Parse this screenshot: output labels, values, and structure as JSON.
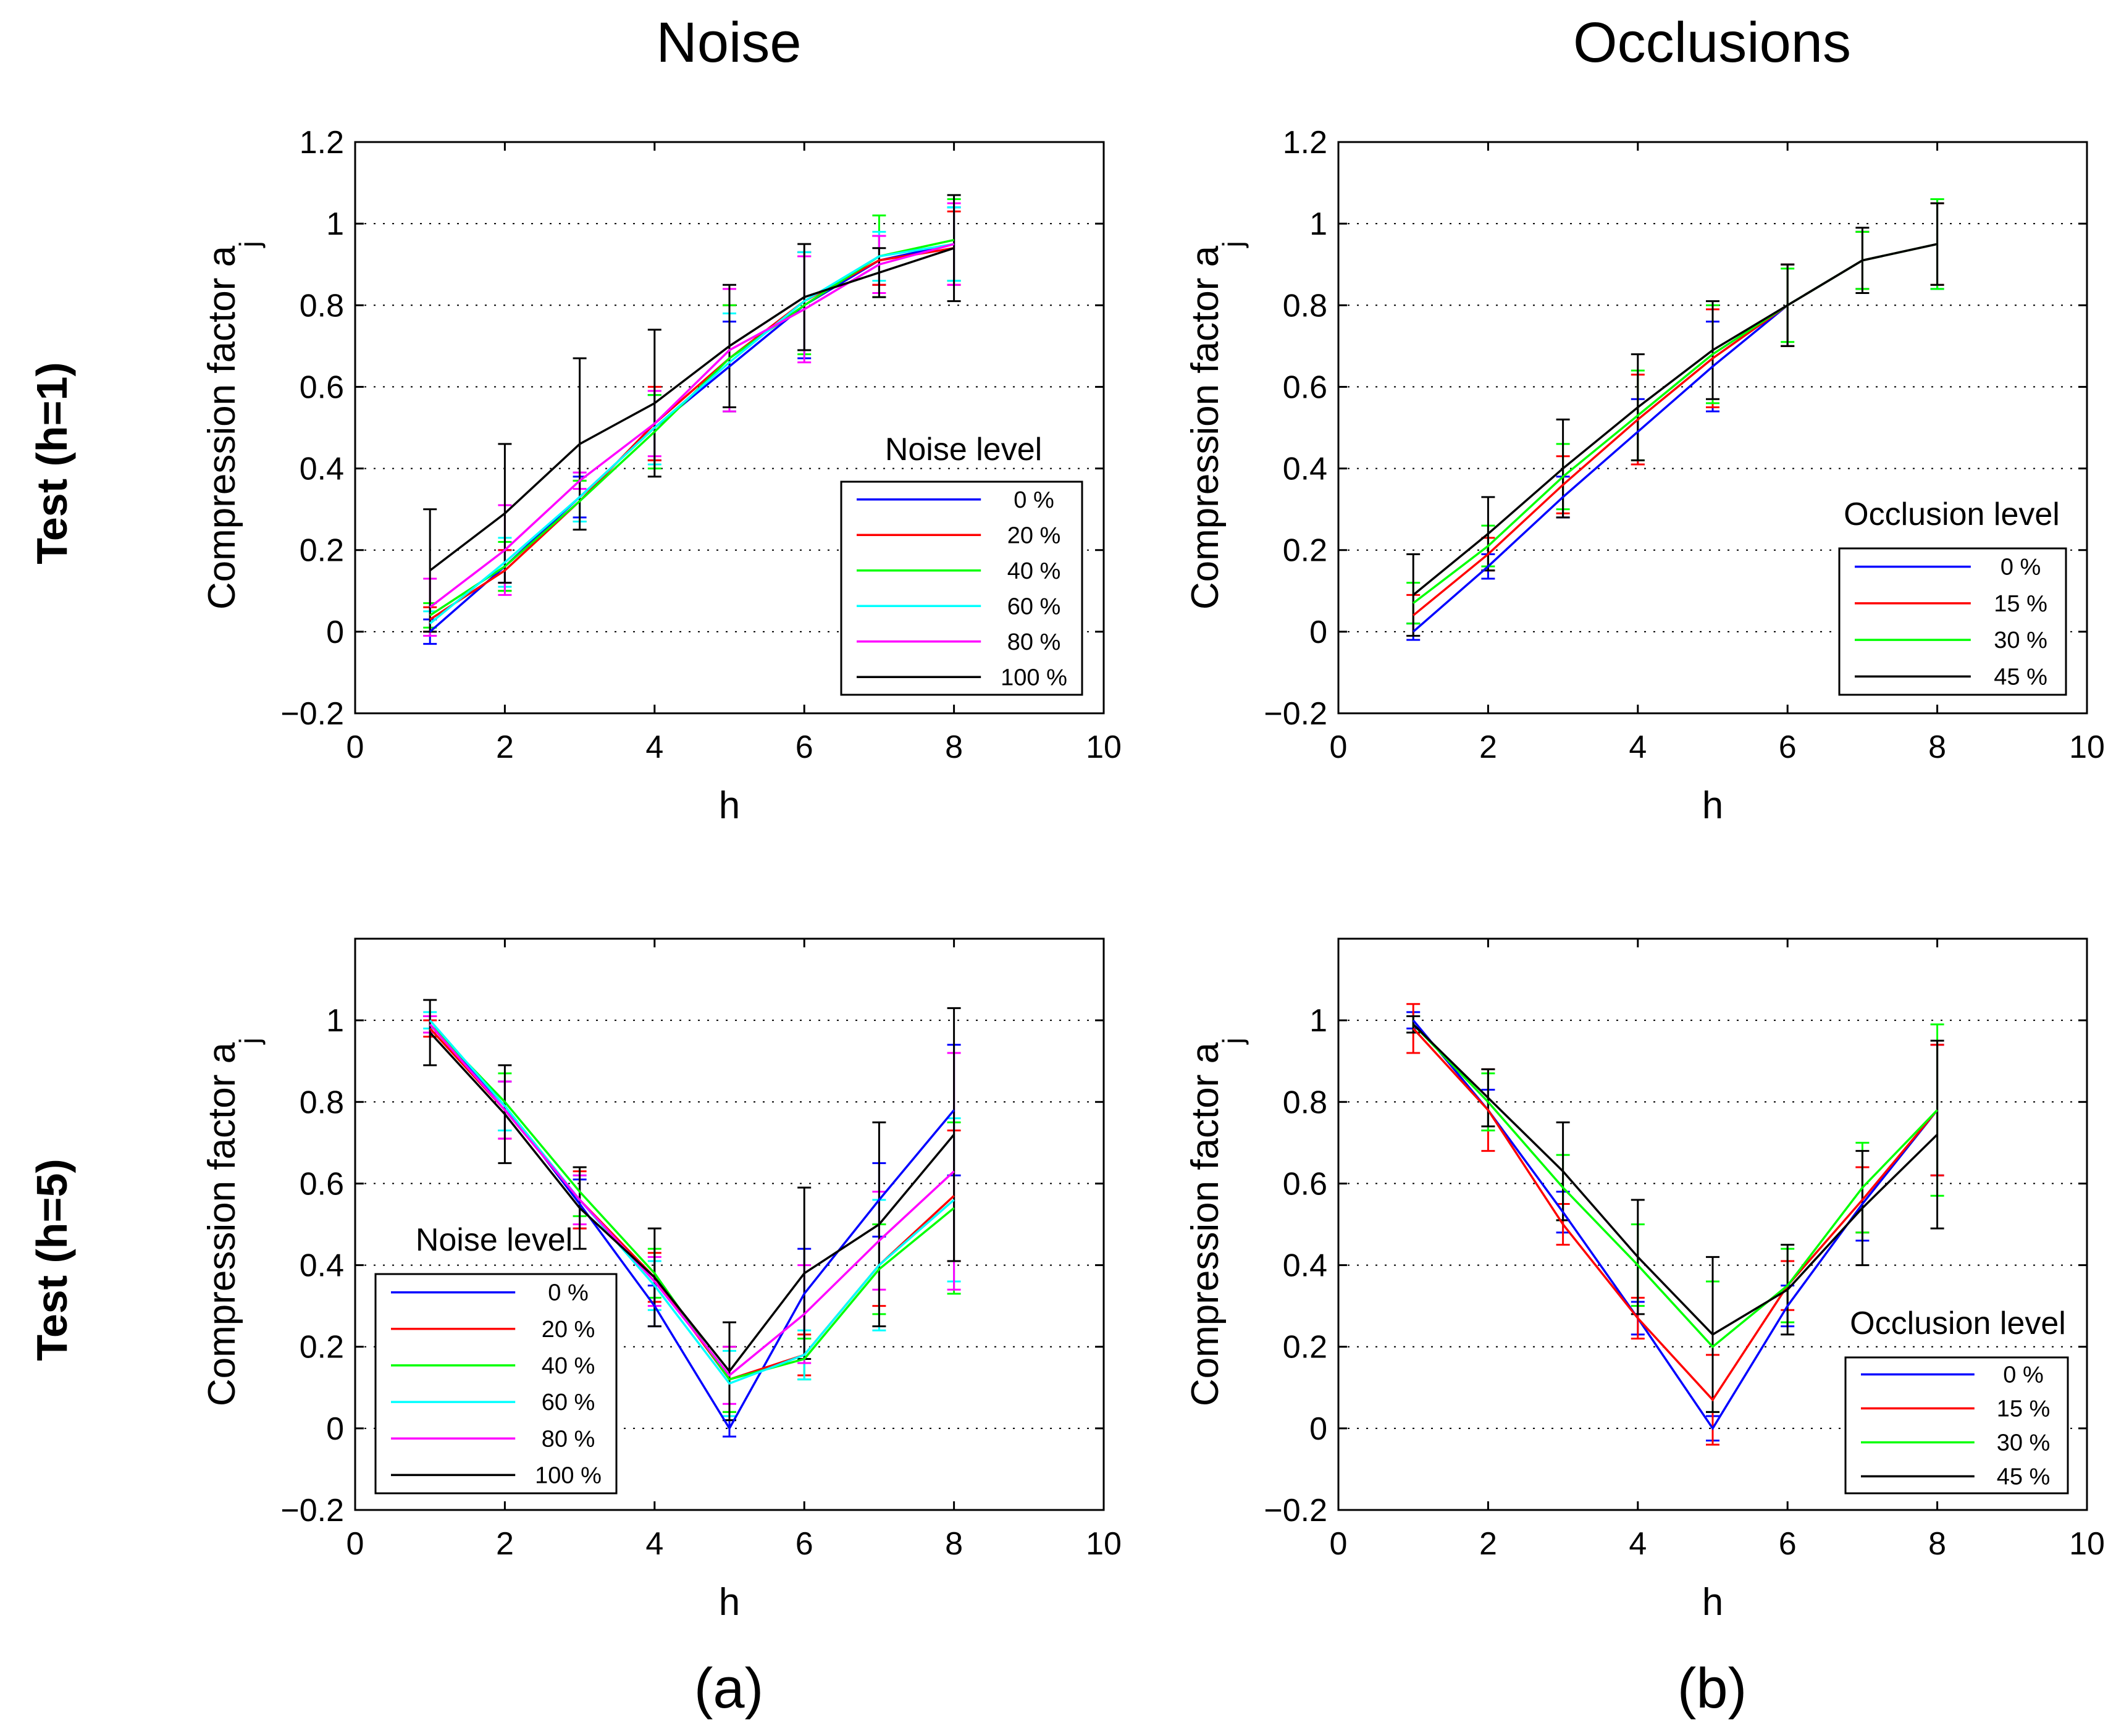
{
  "figure": {
    "col_titles": [
      "Noise",
      "Occlusions"
    ],
    "row_titles": [
      "Test (h=1)",
      "Test (h=5)"
    ],
    "subfig_labels": [
      "(a)",
      "(b)"
    ]
  },
  "colors": {
    "blue": "#0000ff",
    "red": "#ff0000",
    "green": "#00ff00",
    "cyan": "#00ffff",
    "magenta": "#ff00ff",
    "black": "#000000"
  },
  "chart_data": [
    {
      "id": "noise-h1",
      "type": "line",
      "xlabel": "h",
      "ylabel": "Compression factor a",
      "ylabel_sub": "j",
      "xlim": [
        0,
        10
      ],
      "ylim": [
        -0.2,
        1.2
      ],
      "xticks": [
        0,
        2,
        4,
        6,
        8,
        10
      ],
      "yticks": [
        -0.2,
        0,
        0.2,
        0.4,
        0.6,
        0.8,
        1,
        1.2
      ],
      "ytick_labels": [
        "−0.2",
        "0",
        "0.2",
        "0.4",
        "0.6",
        "0.8",
        "1",
        "1.2"
      ],
      "grid": "y-dotted",
      "legend_title": "Noise level",
      "legend_position": "lower-right",
      "x": [
        1,
        2,
        3,
        4,
        5,
        6,
        7,
        8
      ],
      "series": [
        {
          "name": "0 %",
          "color": "blue",
          "values": [
            0.0,
            0.16,
            0.33,
            0.5,
            0.65,
            0.8,
            0.91,
            0.95
          ],
          "err": [
            0.03,
            0.04,
            0.05,
            0.08,
            0.11,
            0.13,
            0.06,
            0.09
          ]
        },
        {
          "name": "20 %",
          "color": "red",
          "values": [
            0.03,
            0.15,
            0.32,
            0.51,
            0.67,
            0.81,
            0.91,
            0.94
          ],
          "err": [
            0.03,
            0.05,
            0.05,
            0.09,
            0.13,
            0.12,
            0.06,
            0.09
          ]
        },
        {
          "name": "40 %",
          "color": "green",
          "values": [
            0.04,
            0.16,
            0.32,
            0.49,
            0.67,
            0.8,
            0.92,
            0.96
          ],
          "err": [
            0.03,
            0.06,
            0.05,
            0.09,
            0.13,
            0.12,
            0.1,
            0.1
          ]
        },
        {
          "name": "60 %",
          "color": "cyan",
          "values": [
            0.02,
            0.17,
            0.33,
            0.5,
            0.66,
            0.81,
            0.92,
            0.95
          ],
          "err": [
            0.03,
            0.06,
            0.06,
            0.09,
            0.12,
            0.12,
            0.06,
            0.09
          ]
        },
        {
          "name": "80 %",
          "color": "magenta",
          "values": [
            0.06,
            0.2,
            0.37,
            0.51,
            0.69,
            0.79,
            0.9,
            0.95
          ],
          "err": [
            0.07,
            0.11,
            0.02,
            0.08,
            0.15,
            0.13,
            0.07,
            0.1
          ]
        },
        {
          "name": "100 %",
          "color": "black",
          "values": [
            0.15,
            0.29,
            0.46,
            0.56,
            0.7,
            0.82,
            0.88,
            0.94
          ],
          "err": [
            0.15,
            0.17,
            0.21,
            0.18,
            0.15,
            0.13,
            0.06,
            0.13
          ]
        }
      ]
    },
    {
      "id": "occl-h1",
      "type": "line",
      "xlabel": "h",
      "ylabel": "Compression factor a",
      "ylabel_sub": "j",
      "xlim": [
        0,
        10
      ],
      "ylim": [
        -0.2,
        1.2
      ],
      "xticks": [
        0,
        2,
        4,
        6,
        8,
        10
      ],
      "yticks": [
        -0.2,
        0,
        0.2,
        0.4,
        0.6,
        0.8,
        1,
        1.2
      ],
      "ytick_labels": [
        "−0.2",
        "0",
        "0.2",
        "0.4",
        "0.6",
        "0.8",
        "1",
        "1.2"
      ],
      "grid": "y-dotted",
      "legend_title": "Occlusion level",
      "legend_position": "lower-right",
      "x": [
        1,
        2,
        3,
        4,
        5,
        6,
        7,
        8
      ],
      "series": [
        {
          "name": "0 %",
          "color": "blue",
          "values": [
            0.0,
            0.16,
            0.33,
            0.49,
            0.65,
            0.8,
            0.91,
            0.95
          ],
          "err": [
            0.02,
            0.03,
            0.05,
            0.08,
            0.11,
            0.1,
            0.07,
            0.11
          ]
        },
        {
          "name": "15 %",
          "color": "red",
          "values": [
            0.04,
            0.19,
            0.36,
            0.52,
            0.67,
            0.8,
            0.91,
            0.95
          ],
          "err": [
            0.05,
            0.04,
            0.07,
            0.11,
            0.12,
            0.1,
            0.07,
            0.1
          ]
        },
        {
          "name": "30 %",
          "color": "green",
          "values": [
            0.07,
            0.21,
            0.38,
            0.53,
            0.68,
            0.8,
            0.91,
            0.95
          ],
          "err": [
            0.05,
            0.05,
            0.08,
            0.11,
            0.12,
            0.09,
            0.07,
            0.11
          ]
        },
        {
          "name": "45 %",
          "color": "black",
          "values": [
            0.09,
            0.24,
            0.4,
            0.55,
            0.69,
            0.8,
            0.91,
            0.95
          ],
          "err": [
            0.1,
            0.09,
            0.12,
            0.13,
            0.12,
            0.1,
            0.08,
            0.1
          ]
        }
      ]
    },
    {
      "id": "noise-h5",
      "type": "line",
      "xlabel": "h",
      "ylabel": "Compression factor a",
      "ylabel_sub": "j",
      "xlim": [
        0,
        10
      ],
      "ylim": [
        -0.2,
        1.2
      ],
      "xticks": [
        0,
        2,
        4,
        6,
        8,
        10
      ],
      "yticks": [
        -0.2,
        0,
        0.2,
        0.4,
        0.6,
        0.8,
        1
      ],
      "ytick_labels": [
        "−0.2",
        "0",
        "0.2",
        "0.4",
        "0.6",
        "0.8",
        "1"
      ],
      "grid": "y-dotted",
      "legend_title": "Noise level",
      "legend_position": "lower-left",
      "x": [
        1,
        2,
        3,
        4,
        5,
        6,
        7,
        8
      ],
      "series": [
        {
          "name": "0 %",
          "color": "blue",
          "values": [
            0.99,
            0.79,
            0.55,
            0.3,
            0.0,
            0.33,
            0.56,
            0.78
          ],
          "err": [
            0.02,
            0.06,
            0.06,
            0.05,
            0.02,
            0.11,
            0.09,
            0.16
          ]
        },
        {
          "name": "20 %",
          "color": "red",
          "values": [
            0.98,
            0.78,
            0.56,
            0.37,
            0.12,
            0.18,
            0.4,
            0.57
          ],
          "err": [
            0.02,
            0.07,
            0.07,
            0.06,
            0.08,
            0.05,
            0.1,
            0.16
          ]
        },
        {
          "name": "40 %",
          "color": "green",
          "values": [
            0.99,
            0.8,
            0.58,
            0.38,
            0.12,
            0.17,
            0.39,
            0.54
          ],
          "err": [
            0.02,
            0.07,
            0.06,
            0.06,
            0.08,
            0.05,
            0.11,
            0.21
          ]
        },
        {
          "name": "60 %",
          "color": "cyan",
          "values": [
            1.0,
            0.79,
            0.56,
            0.35,
            0.11,
            0.18,
            0.4,
            0.56
          ],
          "err": [
            0.02,
            0.06,
            0.06,
            0.06,
            0.08,
            0.06,
            0.16,
            0.2
          ]
        },
        {
          "name": "80 %",
          "color": "magenta",
          "values": [
            0.99,
            0.78,
            0.56,
            0.36,
            0.13,
            0.28,
            0.46,
            0.63
          ],
          "err": [
            0.02,
            0.07,
            0.06,
            0.06,
            0.07,
            0.12,
            0.12,
            0.29
          ]
        },
        {
          "name": "100 %",
          "color": "black",
          "values": [
            0.97,
            0.77,
            0.54,
            0.37,
            0.14,
            0.38,
            0.5,
            0.72
          ],
          "err": [
            0.08,
            0.12,
            0.1,
            0.12,
            0.12,
            0.21,
            0.25,
            0.31
          ]
        }
      ]
    },
    {
      "id": "occl-h5",
      "type": "line",
      "xlabel": "h",
      "ylabel": "Compression factor a",
      "ylabel_sub": "j",
      "xlim": [
        0,
        10
      ],
      "ylim": [
        -0.2,
        1.2
      ],
      "xticks": [
        0,
        2,
        4,
        6,
        8,
        10
      ],
      "yticks": [
        -0.2,
        0,
        0.2,
        0.4,
        0.6,
        0.8,
        1
      ],
      "ytick_labels": [
        "−0.2",
        "0",
        "0.2",
        "0.4",
        "0.6",
        "0.8",
        "1"
      ],
      "grid": "y-dotted",
      "legend_title": "Occlusion level",
      "legend_position": "lower-right",
      "x": [
        1,
        2,
        3,
        4,
        5,
        6,
        7,
        8
      ],
      "series": [
        {
          "name": "0 %",
          "color": "blue",
          "values": [
            1.0,
            0.78,
            0.53,
            0.27,
            0.0,
            0.3,
            0.55,
            0.78
          ],
          "err": [
            0.02,
            0.05,
            0.05,
            0.04,
            0.03,
            0.05,
            0.09,
            0.16
          ]
        },
        {
          "name": "15 %",
          "color": "red",
          "values": [
            0.98,
            0.78,
            0.5,
            0.27,
            0.07,
            0.35,
            0.56,
            0.78
          ],
          "err": [
            0.06,
            0.1,
            0.05,
            0.05,
            0.11,
            0.06,
            0.08,
            0.16
          ]
        },
        {
          "name": "30 %",
          "color": "green",
          "values": [
            0.99,
            0.8,
            0.59,
            0.4,
            0.2,
            0.35,
            0.59,
            0.78
          ],
          "err": [
            0.02,
            0.07,
            0.08,
            0.1,
            0.16,
            0.09,
            0.11,
            0.21
          ]
        },
        {
          "name": "45 %",
          "color": "black",
          "values": [
            0.99,
            0.81,
            0.63,
            0.42,
            0.23,
            0.34,
            0.54,
            0.72
          ],
          "err": [
            0.02,
            0.07,
            0.12,
            0.14,
            0.19,
            0.11,
            0.14,
            0.23
          ]
        }
      ]
    }
  ]
}
